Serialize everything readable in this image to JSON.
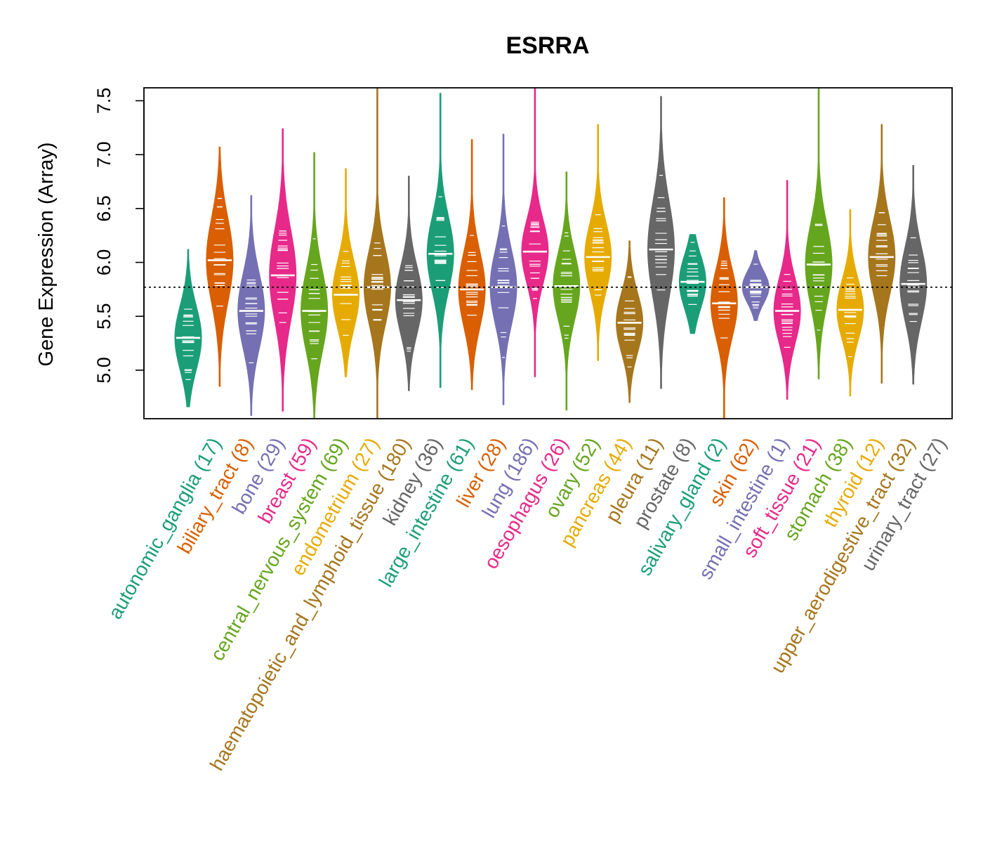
{
  "chart_data": {
    "type": "violin",
    "title": "ESRRA",
    "xlabel": "",
    "ylabel": "Gene Expression (Array)",
    "ylim": [
      4.55,
      7.62
    ],
    "yticks": [
      "5.0",
      "5.5",
      "6.0",
      "6.5",
      "7.0",
      "7.5"
    ],
    "reference_line": 5.77,
    "categories": [
      {
        "name": "autonomic_ganglia",
        "n": "(17)",
        "color": "#1B9E77",
        "min": 4.66,
        "max": 6.12,
        "median": 5.3,
        "spread": 0.3
      },
      {
        "name": "biliary_tract",
        "n": "(8)",
        "color": "#D95F02",
        "min": 4.85,
        "max": 7.07,
        "median": 6.02,
        "spread": 0.4
      },
      {
        "name": "bone",
        "n": "(29)",
        "color": "#7570B3",
        "min": 4.58,
        "max": 6.62,
        "median": 5.55,
        "spread": 0.35
      },
      {
        "name": "breast",
        "n": "(59)",
        "color": "#E7298A",
        "min": 4.62,
        "max": 7.24,
        "median": 5.88,
        "spread": 0.42
      },
      {
        "name": "central_nervous_system",
        "n": "(69)",
        "color": "#66A61E",
        "min": 4.55,
        "max": 7.02,
        "median": 5.55,
        "spread": 0.38
      },
      {
        "name": "endometrium",
        "n": "(27)",
        "color": "#E6AB02",
        "min": 4.94,
        "max": 6.87,
        "median": 5.7,
        "spread": 0.32
      },
      {
        "name": "haematopoietic_and_lymphoid_tissue",
        "n": "(180)",
        "color": "#A6761D",
        "min": 4.55,
        "max": 7.62,
        "median": 5.77,
        "spread": 0.35
      },
      {
        "name": "kidney",
        "n": "(36)",
        "color": "#666666",
        "min": 4.81,
        "max": 6.8,
        "median": 5.65,
        "spread": 0.32
      },
      {
        "name": "large_intestine",
        "n": "(61)",
        "color": "#1B9E77",
        "min": 4.84,
        "max": 7.57,
        "median": 6.08,
        "spread": 0.35
      },
      {
        "name": "liver",
        "n": "(28)",
        "color": "#D95F02",
        "min": 4.82,
        "max": 7.14,
        "median": 5.75,
        "spread": 0.35
      },
      {
        "name": "lung",
        "n": "(186)",
        "color": "#7570B3",
        "min": 4.68,
        "max": 7.19,
        "median": 5.77,
        "spread": 0.35
      },
      {
        "name": "oesophagus",
        "n": "(26)",
        "color": "#E7298A",
        "min": 4.94,
        "max": 7.62,
        "median": 6.1,
        "spread": 0.3
      },
      {
        "name": "ovary",
        "n": "(52)",
        "color": "#66A61E",
        "min": 4.63,
        "max": 6.84,
        "median": 5.78,
        "spread": 0.32
      },
      {
        "name": "pancreas",
        "n": "(44)",
        "color": "#E6AB02",
        "min": 5.09,
        "max": 7.28,
        "median": 6.05,
        "spread": 0.32
      },
      {
        "name": "pleura",
        "n": "(11)",
        "color": "#A6761D",
        "min": 4.7,
        "max": 6.2,
        "median": 5.44,
        "spread": 0.28
      },
      {
        "name": "prostate",
        "n": "(8)",
        "color": "#666666",
        "min": 4.83,
        "max": 7.54,
        "median": 6.12,
        "spread": 0.45
      },
      {
        "name": "salivary_gland",
        "n": "(2)",
        "color": "#1B9E77",
        "min": 5.34,
        "max": 6.26,
        "median": 5.82,
        "spread": 0.25
      },
      {
        "name": "skin",
        "n": "(62)",
        "color": "#D95F02",
        "min": 4.55,
        "max": 6.6,
        "median": 5.62,
        "spread": 0.32
      },
      {
        "name": "small_intestine",
        "n": "(1)",
        "color": "#7570B3",
        "min": 5.46,
        "max": 6.11,
        "median": 5.77,
        "spread": 0.15
      },
      {
        "name": "soft_tissue",
        "n": "(21)",
        "color": "#E7298A",
        "min": 4.73,
        "max": 6.76,
        "median": 5.55,
        "spread": 0.3
      },
      {
        "name": "stomach",
        "n": "(38)",
        "color": "#66A61E",
        "min": 4.92,
        "max": 7.62,
        "median": 5.98,
        "spread": 0.38
      },
      {
        "name": "thyroid",
        "n": "(12)",
        "color": "#E6AB02",
        "min": 4.76,
        "max": 6.49,
        "median": 5.56,
        "spread": 0.28
      },
      {
        "name": "upper_aerodigestive_tract",
        "n": "(32)",
        "color": "#A6761D",
        "min": 4.88,
        "max": 7.28,
        "median": 6.05,
        "spread": 0.35
      },
      {
        "name": "urinary_tract",
        "n": "(27)",
        "color": "#666666",
        "min": 4.87,
        "max": 6.9,
        "median": 5.8,
        "spread": 0.35
      }
    ]
  }
}
